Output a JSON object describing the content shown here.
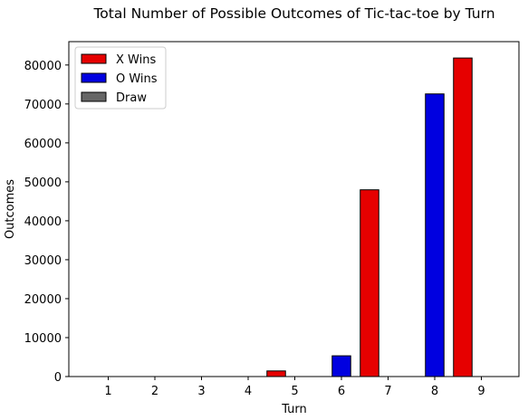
{
  "chart_data": {
    "type": "bar",
    "title": "Total Number of Possible Outcomes of Tic-tac-toe by Turn",
    "xlabel": "Turn",
    "ylabel": "Outcomes",
    "categories": [
      "1",
      "2",
      "3",
      "4",
      "5",
      "6",
      "7",
      "8",
      "9"
    ],
    "series": [
      {
        "name": "X Wins",
        "color": "#e60000",
        "values": [
          0,
          0,
          0,
          0,
          1440,
          0,
          47952,
          0,
          81792
        ]
      },
      {
        "name": "O Wins",
        "color": "#0000e0",
        "values": [
          0,
          0,
          0,
          0,
          0,
          5328,
          0,
          72576,
          0
        ]
      },
      {
        "name": "Draw",
        "color": "#666666",
        "values": [
          0,
          0,
          0,
          0,
          0,
          0,
          0,
          0,
          0
        ]
      }
    ],
    "ylim": [
      0,
      86000
    ],
    "yticks": [
      0,
      10000,
      20000,
      30000,
      40000,
      50000,
      60000,
      70000,
      80000
    ],
    "grid": false,
    "legend_position": "top-left"
  }
}
